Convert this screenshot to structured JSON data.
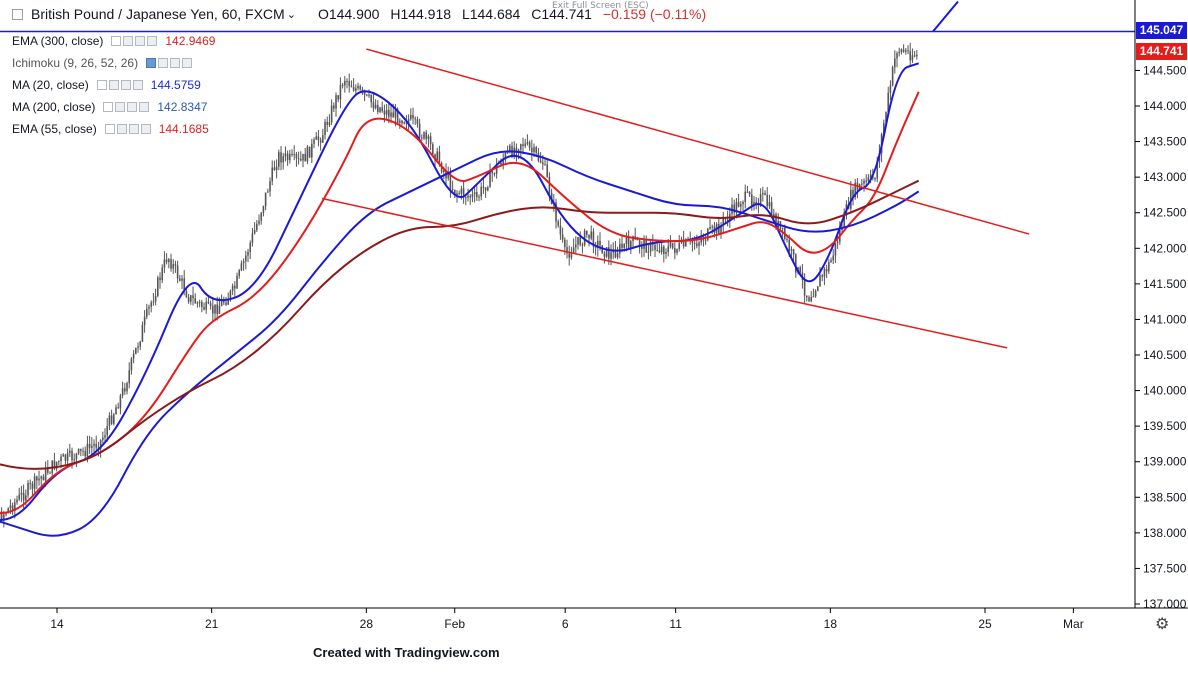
{
  "header": {
    "symbol": "British Pound / Japanese Yen, 60, FXCM",
    "caret": "⌄",
    "open": "O144.900",
    "high": "H144.918",
    "low": "L144.684",
    "close": "C144.741",
    "change": "−0.159 (−0.11%)"
  },
  "exit_fullscreen": "Exit Full Screen (ESC)",
  "studies": [
    {
      "name": "EMA (300, close)",
      "value": "142.9469",
      "color": "#e01f1f"
    },
    {
      "name": "Ichimoku (9, 26, 52, 26)",
      "value": "",
      "color": "#131722"
    },
    {
      "name": "MA (20, close)",
      "value": "144.5759",
      "color": "#1a2bd8"
    },
    {
      "name": "MA (200, close)",
      "value": "142.8347",
      "color": "#2a5aa8"
    },
    {
      "name": "EMA (55, close)",
      "value": "144.1685",
      "color": "#e01f1f"
    }
  ],
  "price_labels": {
    "resistance": "145.047",
    "last": "144.741"
  },
  "colors": {
    "ma20": "#1a1ad6",
    "ema55": "#e51c1c",
    "ma200": "#3a5ea8",
    "ema300": "#8b1a1a",
    "channel": "#e51c1c",
    "resistance": "#1a1ad6",
    "candle": "#555555"
  },
  "credit": "Created with Tradingview.com",
  "icons": {
    "settings": "gear-icon"
  },
  "chart_data": {
    "type": "line",
    "title": "British Pound / Japanese Yen, 60, FXCM",
    "x_axis": {
      "type": "date",
      "tick_labels": [
        "14",
        "21",
        "28",
        "Feb",
        "6",
        "11",
        "18",
        "25",
        "Mar"
      ],
      "tick_dates": [
        "2019-01-14",
        "2019-01-21",
        "2019-01-28",
        "2019-02-01",
        "2019-02-06",
        "2019-02-11",
        "2019-02-18",
        "2019-02-25",
        "2019-03-01"
      ]
    },
    "y_axis": {
      "range": [
        137.0,
        145.5
      ],
      "tick_labels": [
        "137.000",
        "137.500",
        "138.000",
        "138.500",
        "139.000",
        "139.500",
        "140.000",
        "140.500",
        "141.000",
        "141.500",
        "142.000",
        "142.500",
        "143.000",
        "143.500",
        "144.000",
        "144.500"
      ]
    },
    "grid": false,
    "price_series": {
      "name": "GBP/JPY",
      "x": [
        "2019-01-10",
        "2019-01-11",
        "2019-01-12",
        "2019-01-14",
        "2019-01-15",
        "2019-01-16",
        "2019-01-17",
        "2019-01-18",
        "2019-01-19",
        "2019-01-20",
        "2019-01-21",
        "2019-01-22",
        "2019-01-23",
        "2019-01-24",
        "2019-01-25",
        "2019-01-26",
        "2019-01-27",
        "2019-01-28",
        "2019-01-29",
        "2019-01-30",
        "2019-01-31",
        "2019-02-01",
        "2019-02-02",
        "2019-02-03",
        "2019-02-04",
        "2019-02-05",
        "2019-02-06",
        "2019-02-07",
        "2019-02-08",
        "2019-02-09",
        "2019-02-10",
        "2019-02-11",
        "2019-02-12",
        "2019-02-13",
        "2019-02-14",
        "2019-02-15",
        "2019-02-16",
        "2019-02-17",
        "2019-02-18",
        "2019-02-19",
        "2019-02-20",
        "2019-02-21",
        "2019-02-22"
      ],
      "values": [
        138.2,
        138.1,
        138.4,
        139.0,
        139.1,
        139.3,
        140.0,
        141.0,
        141.9,
        141.3,
        141.1,
        141.4,
        142.3,
        143.3,
        143.2,
        143.6,
        144.4,
        144.1,
        143.9,
        143.8,
        143.4,
        142.8,
        142.7,
        143.2,
        143.5,
        143.2,
        141.9,
        142.2,
        141.9,
        142.1,
        142.0,
        142.0,
        142.1,
        142.3,
        142.7,
        142.7,
        142.1,
        141.3,
        141.8,
        142.8,
        143.0,
        144.8,
        144.7
      ]
    },
    "series": [
      {
        "name": "MA (20, close)",
        "x": [
          "2019-01-10",
          "2019-01-12",
          "2019-01-14",
          "2019-01-16",
          "2019-01-18",
          "2019-01-20",
          "2019-01-21",
          "2019-01-23",
          "2019-01-25",
          "2019-01-27",
          "2019-01-28",
          "2019-01-30",
          "2019-02-01",
          "2019-02-02",
          "2019-02-04",
          "2019-02-06",
          "2019-02-08",
          "2019-02-10",
          "2019-02-12",
          "2019-02-14",
          "2019-02-15",
          "2019-02-16",
          "2019-02-17",
          "2019-02-18",
          "2019-02-19",
          "2019-02-20",
          "2019-02-21",
          "2019-02-22"
        ],
        "values": [
          138.3,
          138.1,
          138.9,
          139.1,
          140.2,
          141.7,
          141.2,
          141.4,
          142.7,
          144.0,
          144.3,
          143.8,
          142.6,
          142.9,
          143.5,
          142.3,
          141.9,
          142.1,
          142.1,
          142.5,
          142.7,
          142.0,
          141.4,
          141.9,
          142.8,
          142.9,
          144.5,
          144.6
        ]
      },
      {
        "name": "EMA (55, close)",
        "x": [
          "2019-01-10",
          "2019-01-12",
          "2019-01-14",
          "2019-01-16",
          "2019-01-18",
          "2019-01-20",
          "2019-01-21",
          "2019-01-23",
          "2019-01-25",
          "2019-01-27",
          "2019-01-28",
          "2019-01-30",
          "2019-02-01",
          "2019-02-02",
          "2019-02-04",
          "2019-02-06",
          "2019-02-08",
          "2019-02-10",
          "2019-02-12",
          "2019-02-14",
          "2019-02-15",
          "2019-02-16",
          "2019-02-17",
          "2019-02-18",
          "2019-02-19",
          "2019-02-20",
          "2019-02-21",
          "2019-02-22"
        ],
        "values": [
          138.4,
          138.2,
          138.9,
          139.1,
          139.6,
          140.6,
          141.0,
          141.3,
          142.1,
          143.2,
          143.9,
          143.7,
          142.9,
          143.0,
          143.3,
          142.7,
          142.2,
          142.1,
          142.1,
          142.3,
          142.4,
          142.2,
          141.9,
          142.0,
          142.4,
          142.7,
          143.5,
          144.2
        ]
      },
      {
        "name": "MA (200, close)",
        "x": [
          "2019-01-10",
          "2019-01-12",
          "2019-01-14",
          "2019-01-16",
          "2019-01-18",
          "2019-01-20",
          "2019-01-22",
          "2019-01-24",
          "2019-01-26",
          "2019-01-28",
          "2019-01-30",
          "2019-02-01",
          "2019-02-03",
          "2019-02-05",
          "2019-02-07",
          "2019-02-09",
          "2019-02-11",
          "2019-02-13",
          "2019-02-15",
          "2019-02-17",
          "2019-02-19",
          "2019-02-21",
          "2019-02-22"
        ],
        "values": [
          138.3,
          138.1,
          137.9,
          138.2,
          139.4,
          140.0,
          140.5,
          141.0,
          141.8,
          142.5,
          142.8,
          143.1,
          143.4,
          143.3,
          143.0,
          142.8,
          142.6,
          142.6,
          142.4,
          142.2,
          142.3,
          142.6,
          142.8
        ]
      },
      {
        "name": "EMA (300, close)",
        "x": [
          "2019-01-10",
          "2019-01-12",
          "2019-01-14",
          "2019-01-16",
          "2019-01-18",
          "2019-01-20",
          "2019-01-22",
          "2019-01-24",
          "2019-01-26",
          "2019-01-28",
          "2019-01-30",
          "2019-02-01",
          "2019-02-03",
          "2019-02-05",
          "2019-02-07",
          "2019-02-09",
          "2019-02-11",
          "2019-02-13",
          "2019-02-15",
          "2019-02-17",
          "2019-02-19",
          "2019-02-21",
          "2019-02-22"
        ],
        "values": [
          139.1,
          138.9,
          138.9,
          139.1,
          139.6,
          140.0,
          140.3,
          140.8,
          141.5,
          142.0,
          142.3,
          142.3,
          142.5,
          142.6,
          142.5,
          142.5,
          142.5,
          142.4,
          142.5,
          142.3,
          142.5,
          142.8,
          142.95
        ]
      }
    ],
    "trendlines": [
      {
        "name": "channel-upper",
        "x": [
          "2019-01-28",
          "2019-02-27"
        ],
        "y": [
          144.8,
          142.2
        ]
      },
      {
        "name": "channel-lower",
        "x": [
          "2019-01-26",
          "2019-02-26"
        ],
        "y": [
          142.7,
          140.6
        ]
      },
      {
        "name": "resistance",
        "y": 145.047
      }
    ]
  }
}
